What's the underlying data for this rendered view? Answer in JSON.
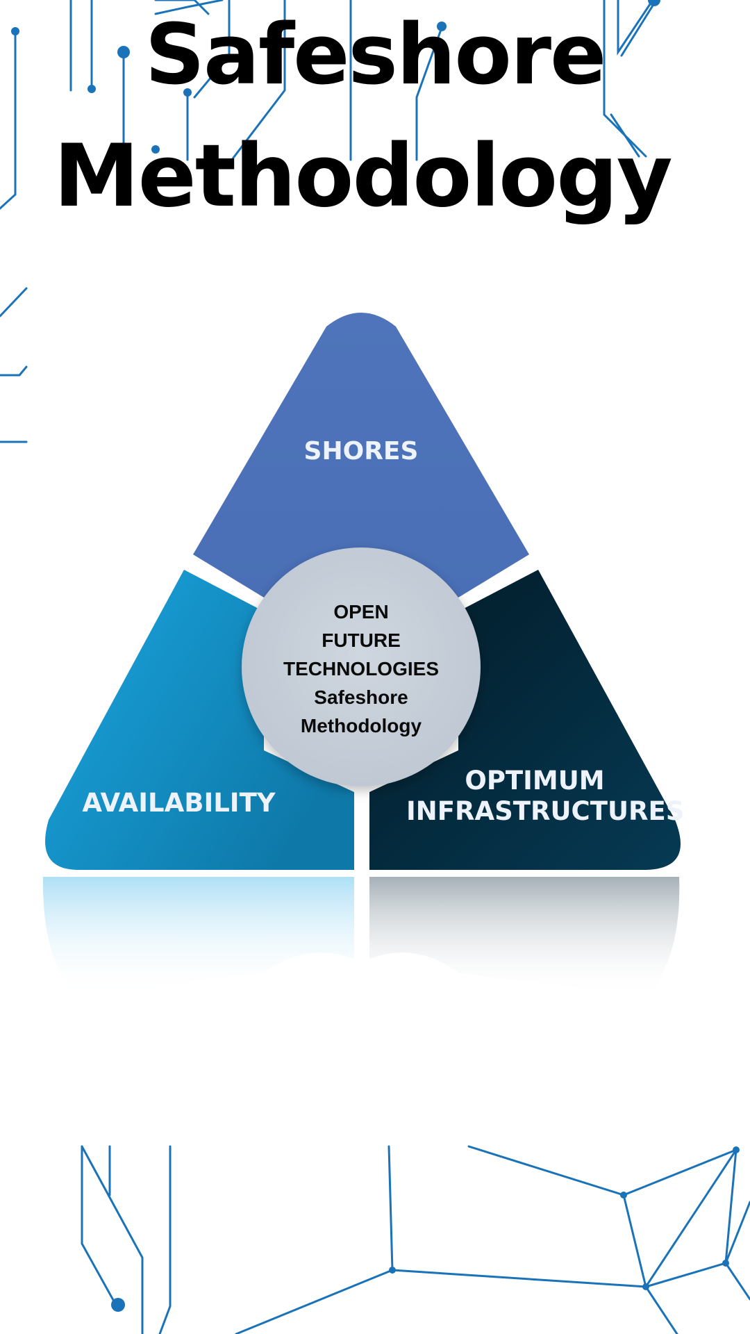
{
  "title": {
    "line1": "Safeshore",
    "line2": "Methodology"
  },
  "diagram": {
    "segments": [
      {
        "label": "SHORES",
        "color": "#4c72b8"
      },
      {
        "label": "AVAILABILITY",
        "color": "#189cd6"
      },
      {
        "label_lines": [
          "OPTIMUM",
          "INFRASTRUCTURES"
        ],
        "color": "#042a3e"
      }
    ],
    "center": {
      "lines": [
        "OPEN",
        "FUTURE",
        "TECHNOLOGIES",
        "Safeshore",
        "Methodology"
      ],
      "color": "#c8d0da"
    }
  },
  "colors": {
    "accent": "#1a73b8",
    "background": "#ffffff",
    "title": "#000000"
  }
}
